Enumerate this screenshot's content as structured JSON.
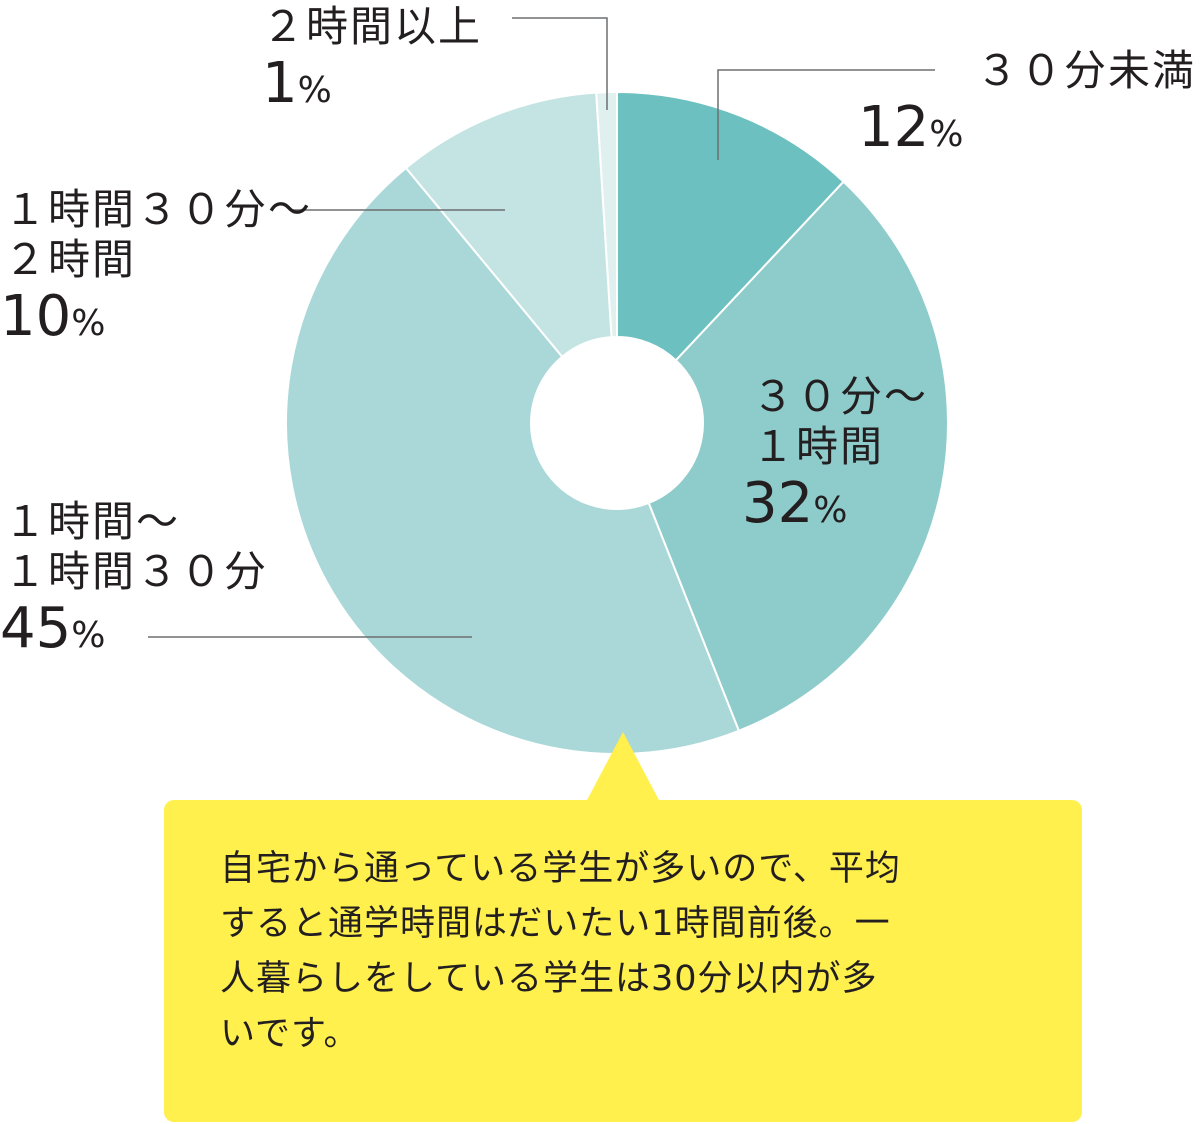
{
  "chart_data": {
    "type": "pie",
    "donut": true,
    "title": "",
    "categories": [
      "３０分未満",
      "３０分〜１時間",
      "１時間〜１時間３０分",
      "１時間３０分〜２時間",
      "２時間以上"
    ],
    "values": [
      12,
      32,
      45,
      10,
      1
    ],
    "unit": "%",
    "colors": [
      "#6dc0c0",
      "#8ecccb",
      "#aad8d8",
      "#c4e4e4",
      "#dff0ef"
    ],
    "slices": [
      {
        "label_lines": [
          "３０分未満"
        ],
        "value": "12",
        "unit": "%",
        "color": "#6dc0c0"
      },
      {
        "label_lines": [
          "３０分〜",
          "１時間"
        ],
        "value": "32",
        "unit": "%",
        "color": "#8ecccb"
      },
      {
        "label_lines": [
          "１時間〜",
          "１時間３０分"
        ],
        "value": "45",
        "unit": "%",
        "color": "#aad8d8"
      },
      {
        "label_lines": [
          "１時間３０分〜",
          "２時間"
        ],
        "value": "10",
        "unit": "%",
        "color": "#c4e4e4"
      },
      {
        "label_lines": [
          "２時間以上"
        ],
        "value": "1",
        "unit": "%",
        "color": "#dff0ef"
      }
    ]
  },
  "note": {
    "text": "自宅から通っている学生が多いので、平均\nすると通学時間はだいたい1時間前後。一\n人暮らしをしている学生は30分以内が多\nいです。",
    "background": "#fff04d"
  }
}
